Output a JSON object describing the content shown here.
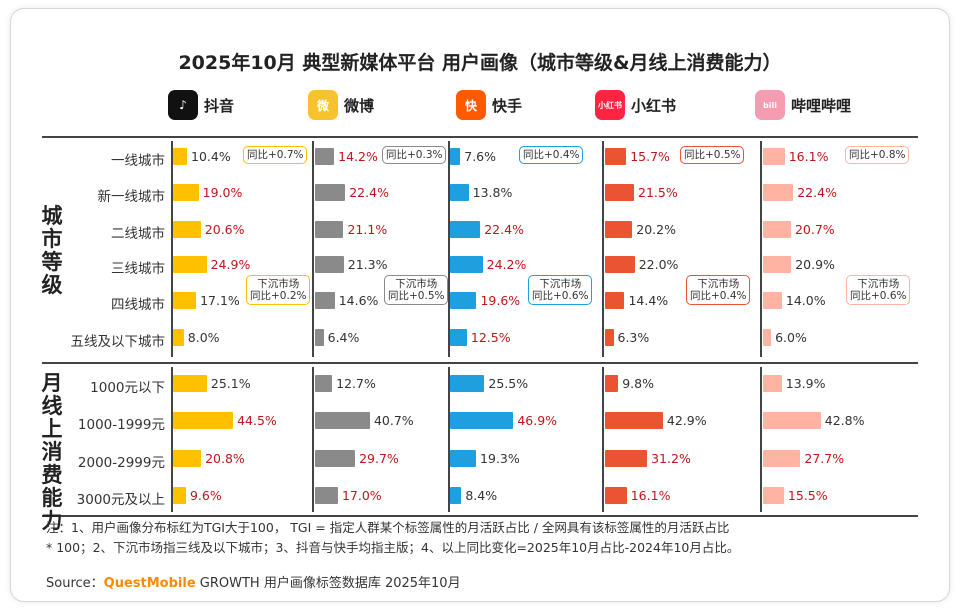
{
  "title": "2025年10月 典型新媒体平台 用户画像（城市等级&月线上消费能力）",
  "platforms": [
    {
      "name": "抖音",
      "icon": "douyin-logo",
      "icon_text": "♪",
      "color": "#111111"
    },
    {
      "name": "微博",
      "icon": "weibo-logo",
      "icon_text": "微",
      "color": "#f6c32f"
    },
    {
      "name": "快手",
      "icon": "kuaishou-logo",
      "icon_text": "快",
      "color": "#ff5a00"
    },
    {
      "name": "小红书",
      "icon": "xiaohongshu-logo",
      "icon_text": "小红书",
      "color": "#ff2442"
    },
    {
      "name": "哔哩哔哩",
      "icon": "bilibili-logo",
      "icon_text": "bili",
      "color": "#f59bb2"
    }
  ],
  "section_labels": {
    "city": "城市等级",
    "consumption": "月线上消费能力"
  },
  "yoy": {
    "top": [
      "同比+0.7%",
      "同比+0.3%",
      "同比+0.4%",
      "同比+0.5%",
      "同比+0.8%"
    ],
    "sinking_title": "下沉市场",
    "sinking": [
      "同比+0.2%",
      "同比+0.5%",
      "同比+0.6%",
      "同比+0.4%",
      "同比+0.6%"
    ]
  },
  "chart_data": {
    "type": "bar",
    "colors": {
      "抖音": "#ffc000",
      "微博": "#8a8a8a",
      "快手": "#1f9fdd",
      "小红书": "#ea5432",
      "哔哩哔哩": "#ffb3a2"
    },
    "highlight_color": "#c0151a",
    "city_tiers": {
      "categories": [
        "一线城市",
        "新一线城市",
        "二线城市",
        "三线城市",
        "四线城市",
        "五线及以下城市"
      ],
      "series": [
        {
          "name": "抖音",
          "values": [
            10.4,
            19.0,
            20.6,
            24.9,
            17.1,
            8.0
          ],
          "highlight": [
            false,
            true,
            true,
            true,
            false,
            false
          ]
        },
        {
          "name": "微博",
          "values": [
            14.2,
            22.4,
            21.1,
            21.3,
            14.6,
            6.4
          ],
          "highlight": [
            true,
            true,
            true,
            false,
            false,
            false
          ]
        },
        {
          "name": "快手",
          "values": [
            7.6,
            13.8,
            22.4,
            24.2,
            19.6,
            12.5
          ],
          "highlight": [
            false,
            false,
            true,
            true,
            true,
            true
          ]
        },
        {
          "name": "小红书",
          "values": [
            15.7,
            21.5,
            20.2,
            22.0,
            14.4,
            6.3
          ],
          "highlight": [
            true,
            true,
            false,
            false,
            false,
            false
          ]
        },
        {
          "name": "哔哩哔哩",
          "values": [
            16.1,
            22.4,
            20.7,
            20.9,
            14.0,
            6.0
          ],
          "highlight": [
            true,
            true,
            true,
            false,
            false,
            false
          ]
        }
      ]
    },
    "consumption": {
      "categories": [
        "1000元以下",
        "1000-1999元",
        "2000-2999元",
        "3000元及以上"
      ],
      "series": [
        {
          "name": "抖音",
          "values": [
            25.1,
            44.5,
            20.8,
            9.6
          ],
          "highlight": [
            false,
            true,
            true,
            true
          ]
        },
        {
          "name": "微博",
          "values": [
            12.7,
            40.7,
            29.7,
            17.0
          ],
          "highlight": [
            false,
            false,
            true,
            true
          ]
        },
        {
          "name": "快手",
          "values": [
            25.5,
            46.9,
            19.3,
            8.4
          ],
          "highlight": [
            false,
            true,
            false,
            false
          ]
        },
        {
          "name": "小红书",
          "values": [
            9.8,
            42.9,
            31.2,
            16.1
          ],
          "highlight": [
            false,
            false,
            true,
            true
          ]
        },
        {
          "name": "哔哩哔哩",
          "values": [
            13.9,
            42.8,
            27.7,
            15.5
          ],
          "highlight": [
            false,
            false,
            true,
            true
          ]
        }
      ]
    }
  },
  "notes": {
    "line1": "注：1、用户画像分布标红为TGI大于100， TGI = 指定人群某个标签属性的月活跃占比 / 全网具有该标签属性的月活跃占比",
    "line2": "* 100；2、下沉市场指三线及以下城市；3、抖音与快手均指主版；4、以上同比变化=2025年10月占比-2024年10月占比。"
  },
  "source": {
    "prefix": "Source：",
    "brand": "QuestMobile",
    "suffix": " GROWTH 用户画像标签数据库 2025年10月"
  }
}
